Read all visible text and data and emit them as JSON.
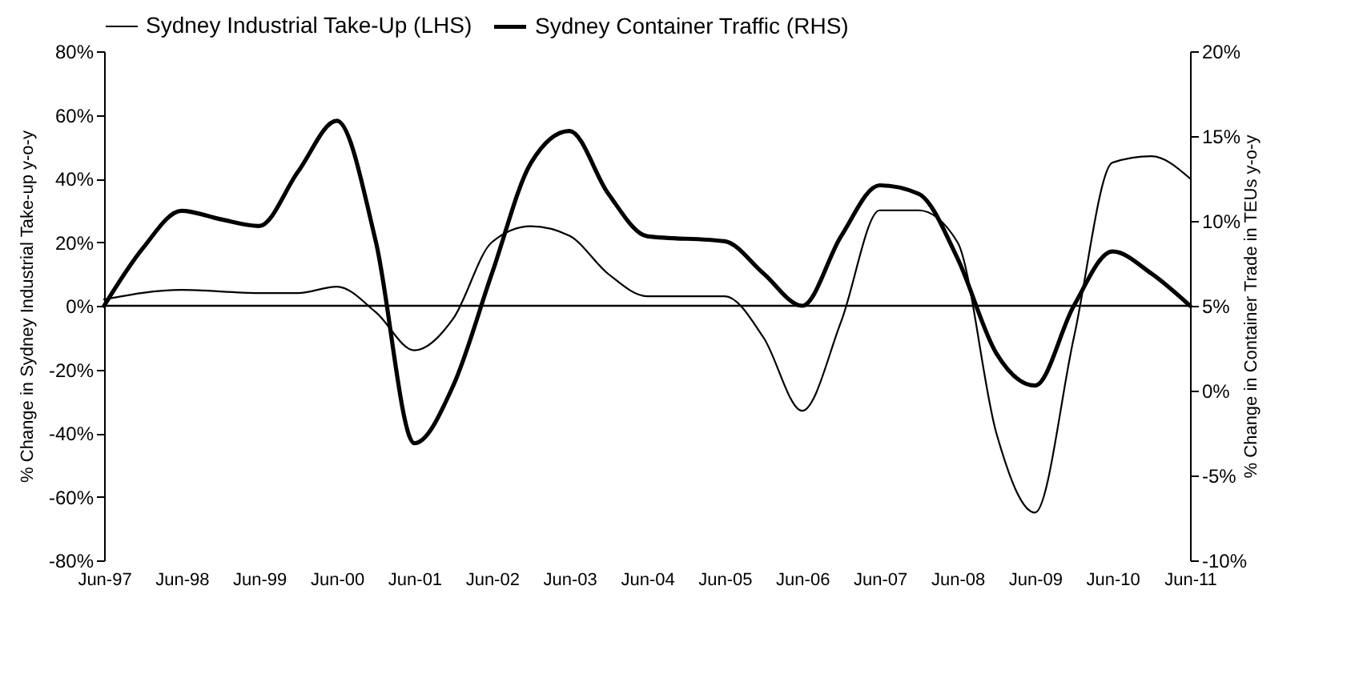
{
  "chart_data": {
    "type": "line",
    "ylabel": "% Change in Sydney Industrial Take-up y-o-y",
    "y2label": "% Change in Container Trade in TEUs y-o-y",
    "series": [
      {
        "name": "Sydney Industrial Take-Up (LHS)",
        "color": "#000000",
        "x": [
          "1997-06",
          "1998-06",
          "1999-06",
          "1999-12",
          "2000-06",
          "2000-12",
          "2001-06",
          "2001-12",
          "2002-06",
          "2002-12",
          "2003-06",
          "2003-12",
          "2004-06",
          "2005-06",
          "2005-12",
          "2006-06",
          "2006-12",
          "2007-06",
          "2007-12",
          "2008-06",
          "2008-12",
          "2009-06",
          "2009-12",
          "2010-06",
          "2010-12",
          "2011-06"
        ],
        "values": [
          2,
          5,
          4,
          4,
          6,
          -2,
          -14,
          -4,
          20,
          25,
          22,
          10,
          3,
          3,
          -10,
          -33,
          -5,
          30,
          30,
          20,
          -40,
          -65,
          -10,
          45,
          47,
          40
        ]
      },
      {
        "name": "Sydney Container Traffic (RHS)",
        "color": "#000000",
        "axis": "y2",
        "x": [
          "1997-06",
          "1997-12",
          "1998-06",
          "1998-12",
          "1999-06",
          "1999-12",
          "2000-06",
          "2000-12",
          "2001-06",
          "2001-12",
          "2002-06",
          "2002-12",
          "2003-06",
          "2003-12",
          "2004-06",
          "2005-06",
          "2005-12",
          "2006-06",
          "2006-12",
          "2007-06",
          "2007-12",
          "2008-06",
          "2008-12",
          "2009-06",
          "2009-12",
          "2010-06",
          "2010-12",
          "2011-06"
        ],
        "values": [
          5,
          8.4,
          10.6,
          10.1,
          9.7,
          12.9,
          15.9,
          8.8,
          -3.1,
          0.3,
          6.9,
          13.4,
          15.3,
          11.6,
          9.1,
          8.8,
          6.9,
          5,
          9.1,
          12.1,
          11.6,
          7.8,
          2.2,
          0.3,
          5,
          8.2,
          6.9,
          5
        ]
      }
    ],
    "xlim": [
      "1997-06",
      "2011-06"
    ],
    "xticks": [
      {
        "value": "1997-06",
        "label": "Jun-97"
      },
      {
        "value": "1998-06",
        "label": "Jun-98"
      },
      {
        "value": "1999-06",
        "label": "Jun-99"
      },
      {
        "value": "2000-06",
        "label": "Jun-00"
      },
      {
        "value": "2001-06",
        "label": "Jun-01"
      },
      {
        "value": "2002-06",
        "label": "Jun-02"
      },
      {
        "value": "2003-06",
        "label": "Jun-03"
      },
      {
        "value": "2004-06",
        "label": "Jun-04"
      },
      {
        "value": "2005-06",
        "label": "Jun-05"
      },
      {
        "value": "2006-06",
        "label": "Jun-06"
      },
      {
        "value": "2007-06",
        "label": "Jun-07"
      },
      {
        "value": "2008-06",
        "label": "Jun-08"
      },
      {
        "value": "2009-06",
        "label": "Jun-09"
      },
      {
        "value": "2010-06",
        "label": "Jun-10"
      },
      {
        "value": "2011-06",
        "label": "Jun-11"
      }
    ],
    "ylim": [
      -80,
      80
    ],
    "yticks": [
      {
        "value": -80,
        "label": "-80%"
      },
      {
        "value": -60,
        "label": "-60%"
      },
      {
        "value": -40,
        "label": "-40%"
      },
      {
        "value": -20,
        "label": "-20%"
      },
      {
        "value": 0,
        "label": "0%"
      },
      {
        "value": 20,
        "label": "20%"
      },
      {
        "value": 40,
        "label": "40%"
      },
      {
        "value": 60,
        "label": "60%"
      },
      {
        "value": 80,
        "label": "80%"
      }
    ],
    "y2lim": [
      -10,
      20
    ],
    "y2ticks": [
      {
        "value": -10,
        "label": "-10%"
      },
      {
        "value": -5,
        "label": "-5%"
      },
      {
        "value": 0,
        "label": "0%"
      },
      {
        "value": 5,
        "label": "5%"
      },
      {
        "value": 10,
        "label": "10%"
      },
      {
        "value": 15,
        "label": "15%"
      },
      {
        "value": 20,
        "label": "20%"
      }
    ],
    "ref_lines": [
      {
        "axis": "y",
        "value": 0,
        "color": "#000000"
      }
    ],
    "grid": false,
    "legend": "top",
    "line_style": "solid",
    "marker": "none"
  }
}
